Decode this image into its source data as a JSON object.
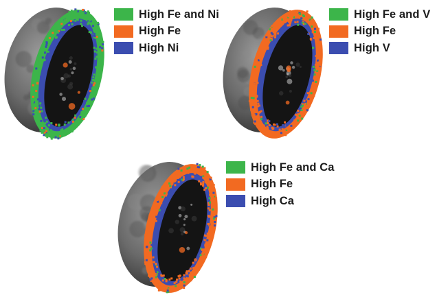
{
  "colors": {
    "shared": "#3cb54a",
    "fe_only": "#f26a21",
    "element_only": "#3b4db0",
    "shell": "#6a6a6a",
    "interior": "#141414"
  },
  "panels": [
    {
      "element": "Ni",
      "band": "green-dominant",
      "legend": [
        {
          "label": "High Fe and Ni",
          "color_key": "shared"
        },
        {
          "label": "High Fe",
          "color_key": "fe_only"
        },
        {
          "label": "High Ni",
          "color_key": "element_only"
        }
      ]
    },
    {
      "element": "V",
      "band": "orange-dominant",
      "legend": [
        {
          "label": "High Fe and V",
          "color_key": "shared"
        },
        {
          "label": "High Fe",
          "color_key": "fe_only"
        },
        {
          "label": "High V",
          "color_key": "element_only"
        }
      ]
    },
    {
      "element": "Ca",
      "band": "orange-dominant",
      "legend": [
        {
          "label": "High Fe and Ca",
          "color_key": "shared"
        },
        {
          "label": "High Fe",
          "color_key": "fe_only"
        },
        {
          "label": "High Ca",
          "color_key": "element_only"
        }
      ]
    }
  ]
}
